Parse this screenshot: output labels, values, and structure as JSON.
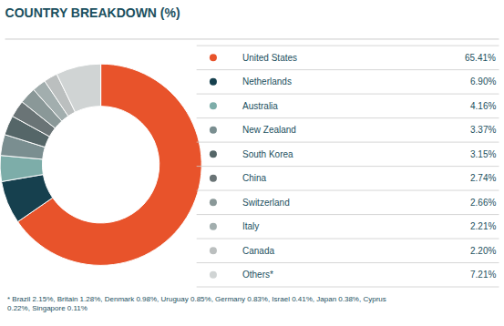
{
  "chart_data": {
    "type": "pie",
    "title": "COUNTRY BREAKDOWN (%)",
    "categories": [
      "United States",
      "Netherlands",
      "Australia",
      "New Zealand",
      "South Korea",
      "China",
      "Switzerland",
      "Italy",
      "Canada",
      "Others*"
    ],
    "values": [
      65.41,
      6.9,
      4.16,
      3.37,
      3.15,
      2.74,
      2.66,
      2.21,
      2.2,
      7.21
    ],
    "value_labels": [
      "65.41%",
      "6.90%",
      "4.16%",
      "3.37%",
      "3.15%",
      "2.74%",
      "2.66%",
      "2.21%",
      "2.20%",
      "7.21%"
    ],
    "colors": [
      "#E8532B",
      "#16404E",
      "#7DADA9",
      "#7A8E90",
      "#556668",
      "#6A7476",
      "#8A9898",
      "#A2AEAE",
      "#BBBFBF",
      "#D0D4D4"
    ],
    "annotations": [
      "* Brazil 2.15%, Britain 1.28%, Denmark 0.98%, Uruguay 0.85%, Germany 0.83%, Israel 0.41%, Japan 0.38%, Cyprus\n0.22%, Singapore 0.11%"
    ]
  }
}
